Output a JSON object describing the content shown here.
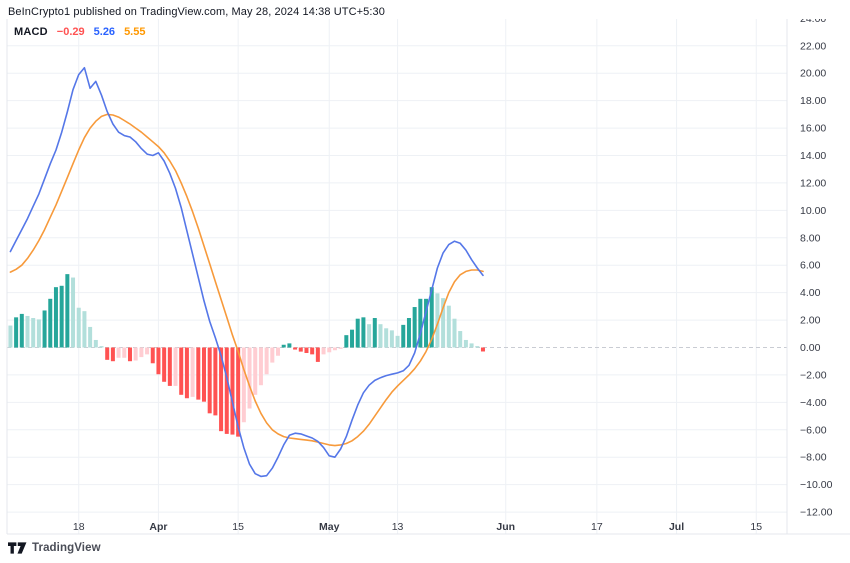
{
  "header": {
    "publish_line": "BeInCrypto1 published on TradingView.com, May 28, 2024 14:38 UTC+5:30"
  },
  "legend": {
    "indicator": "MACD",
    "histogram_value": "−0.29",
    "macd_value": "5.26",
    "signal_value": "5.55"
  },
  "footer": {
    "brand": "TradingView"
  },
  "colors": {
    "hist_pos_strong": "#26A69A",
    "hist_pos_weak": "#B2DFDB",
    "hist_neg_strong": "#FF5252",
    "hist_neg_weak": "#FFCDD2",
    "macd_line": "#5577E8",
    "signal_line": "#F79A3B",
    "legend_hist": "#FF5252",
    "legend_macd": "#2962FF",
    "legend_signal": "#FF9800",
    "grid": "#EEF1F5",
    "zero_line": "#C9CCD3",
    "border": "#E4E7EC",
    "axis_text": "#363A45"
  },
  "chart_data": {
    "type": "bar",
    "title": "MACD indicator (histogram, MACD line, signal line)",
    "x_axis": {
      "total_slots": 137,
      "ticks": [
        {
          "label": "18",
          "day_index": 12,
          "bold": false
        },
        {
          "label": "Apr",
          "day_index": 26,
          "bold": true
        },
        {
          "label": "15",
          "day_index": 40,
          "bold": false
        },
        {
          "label": "May",
          "day_index": 56,
          "bold": true
        },
        {
          "label": "13",
          "day_index": 68,
          "bold": false
        },
        {
          "label": "Jun",
          "day_index": 87,
          "bold": true
        },
        {
          "label": "17",
          "day_index": 103,
          "bold": false
        },
        {
          "label": "Jul",
          "day_index": 117,
          "bold": true
        },
        {
          "label": "15",
          "day_index": 131,
          "bold": false
        }
      ]
    },
    "y_axis": {
      "min": -12,
      "max": 24,
      "step": 2,
      "grid": true,
      "zero_line_dashed": true,
      "tick_labels": [
        "24.00",
        "22.00",
        "20.00",
        "18.00",
        "16.00",
        "14.00",
        "12.00",
        "10.00",
        "8.00",
        "6.00",
        "4.00",
        "2.00",
        "0.00",
        "−2.00",
        "−4.00",
        "−6.00",
        "−8.00",
        "−10.00",
        "−12.00"
      ]
    },
    "series": [
      {
        "name": "Histogram",
        "type": "bar",
        "values": [
          1.6,
          2.2,
          2.45,
          2.3,
          2.15,
          2.05,
          2.7,
          3.55,
          4.4,
          4.5,
          5.35,
          5.1,
          2.9,
          2.65,
          1.5,
          0.55,
          0.1,
          -0.9,
          -1.0,
          -0.75,
          -0.75,
          -1.0,
          -0.95,
          -0.7,
          -0.5,
          -1.15,
          -1.95,
          -2.5,
          -2.8,
          -2.8,
          -3.45,
          -3.7,
          -3.6,
          -3.8,
          -3.95,
          -4.8,
          -4.95,
          -6.1,
          -6.3,
          -6.35,
          -6.5,
          -5.45,
          -4.45,
          -3.45,
          -2.75,
          -1.95,
          -1.1,
          -0.6,
          0.2,
          0.3,
          -0.15,
          -0.3,
          -0.4,
          -0.5,
          -1.05,
          -0.5,
          -0.35,
          -0.2,
          -0.1,
          0.9,
          1.3,
          2.1,
          2.2,
          1.7,
          2.15,
          1.7,
          1.4,
          1.25,
          0.85,
          1.65,
          2.15,
          2.95,
          3.55,
          3.55,
          4.4,
          3.95,
          3.6,
          3.05,
          2.1,
          1.2,
          0.55,
          0.3,
          0.1,
          -0.29
        ]
      },
      {
        "name": "MACD",
        "type": "line",
        "values": [
          7.0,
          7.8,
          8.6,
          9.4,
          10.3,
          11.2,
          12.3,
          13.4,
          14.4,
          15.7,
          17.2,
          18.8,
          19.9,
          20.4,
          18.9,
          19.4,
          18.4,
          17.2,
          16.3,
          15.7,
          15.45,
          15.35,
          15.0,
          14.5,
          14.1,
          14.0,
          14.2,
          13.6,
          12.7,
          11.6,
          10.2,
          8.5,
          6.8,
          5.1,
          3.4,
          1.9,
          0.7,
          -0.6,
          -2.2,
          -4.0,
          -5.8,
          -7.3,
          -8.5,
          -9.2,
          -9.4,
          -9.35,
          -8.8,
          -8.0,
          -7.1,
          -6.4,
          -6.25,
          -6.3,
          -6.45,
          -6.6,
          -6.85,
          -7.3,
          -7.9,
          -8.0,
          -7.4,
          -6.5,
          -5.3,
          -4.2,
          -3.3,
          -2.75,
          -2.4,
          -2.2,
          -2.05,
          -1.95,
          -1.85,
          -1.7,
          -1.3,
          -0.4,
          1.0,
          2.6,
          4.2,
          5.8,
          6.9,
          7.5,
          7.75,
          7.6,
          7.1,
          6.4,
          5.8,
          5.26
        ]
      },
      {
        "name": "Signal",
        "type": "line",
        "values": [
          5.5,
          5.7,
          6.0,
          6.5,
          7.1,
          7.8,
          8.6,
          9.5,
          10.4,
          11.4,
          12.4,
          13.4,
          14.4,
          15.3,
          16.0,
          16.5,
          16.85,
          17.0,
          16.95,
          16.8,
          16.55,
          16.3,
          16.0,
          15.7,
          15.35,
          15.0,
          14.65,
          14.2,
          13.6,
          12.9,
          12.0,
          11.0,
          9.9,
          8.7,
          7.4,
          6.1,
          4.8,
          3.5,
          2.2,
          0.9,
          -0.3,
          -1.6,
          -2.8,
          -3.9,
          -4.8,
          -5.5,
          -6.0,
          -6.3,
          -6.5,
          -6.6,
          -6.65,
          -6.7,
          -6.75,
          -6.8,
          -6.9,
          -7.0,
          -7.1,
          -7.15,
          -7.1,
          -7.0,
          -6.8,
          -6.5,
          -6.1,
          -5.6,
          -5.0,
          -4.4,
          -3.8,
          -3.25,
          -2.8,
          -2.4,
          -2.0,
          -1.55,
          -1.0,
          -0.3,
          0.6,
          1.7,
          2.9,
          4.0,
          4.8,
          5.3,
          5.55,
          5.65,
          5.65,
          5.55
        ]
      }
    ]
  }
}
